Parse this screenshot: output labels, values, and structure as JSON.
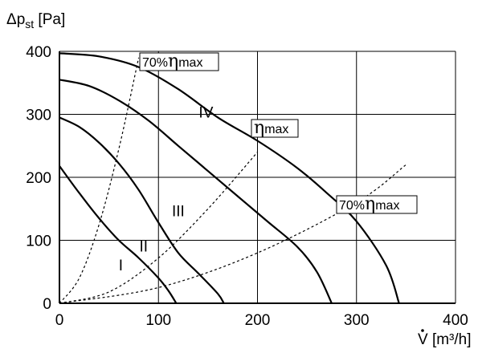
{
  "chart_data": {
    "type": "line",
    "ylabel": {
      "main": "Δp",
      "sub": "st",
      "unit": "[Pa]"
    },
    "xlabel": {
      "main": "V",
      "unit": "[m³/h]"
    },
    "xlim": [
      0,
      400
    ],
    "ylim": [
      0,
      400
    ],
    "xticks": [
      "0",
      "100",
      "200",
      "300",
      "400"
    ],
    "yticks": [
      "0",
      "100",
      "200",
      "300",
      "400"
    ],
    "grid": true,
    "series": [
      {
        "name": "I",
        "x": [
          0,
          20,
          40,
          60,
          80,
          100,
          110,
          118
        ],
        "y": [
          218,
          175,
          135,
          100,
          72,
          40,
          20,
          0
        ]
      },
      {
        "name": "II",
        "x": [
          0,
          20,
          40,
          60,
          80,
          100,
          120,
          140,
          160,
          166
        ],
        "y": [
          295,
          280,
          255,
          222,
          180,
          128,
          80,
          48,
          15,
          0
        ]
      },
      {
        "name": "III",
        "x": [
          0,
          30,
          60,
          90,
          120,
          150,
          180,
          210,
          240,
          260,
          275
        ],
        "y": [
          355,
          345,
          322,
          290,
          250,
          210,
          170,
          130,
          90,
          50,
          0
        ]
      },
      {
        "name": "IV",
        "x": [
          0,
          40,
          80,
          120,
          160,
          200,
          240,
          270,
          300,
          330,
          343
        ],
        "y": [
          397,
          392,
          375,
          340,
          295,
          258,
          215,
          175,
          130,
          60,
          0
        ]
      }
    ],
    "efficiency_lines": [
      {
        "label": "70%",
        "symbol": "η",
        "suffix": "max",
        "x": [
          0,
          20,
          40,
          60,
          80
        ],
        "y": [
          0,
          40,
          125,
          245,
          390
        ]
      },
      {
        "label": "",
        "symbol": "η",
        "suffix": "max",
        "x": [
          0,
          50,
          100,
          150,
          200
        ],
        "y": [
          0,
          18,
          72,
          150,
          240
        ]
      },
      {
        "label": "70%",
        "symbol": "η",
        "suffix": "max",
        "x": [
          0,
          100,
          200,
          300,
          350
        ],
        "y": [
          0,
          25,
          80,
          160,
          220
        ]
      }
    ]
  }
}
